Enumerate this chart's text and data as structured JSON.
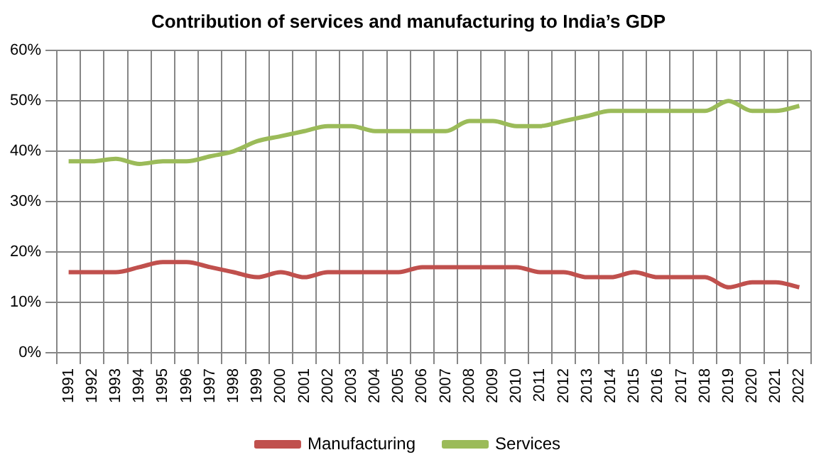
{
  "chart_data": {
    "type": "line",
    "title": "Contribution of services and manufacturing to India’s GDP",
    "categories": [
      "1991",
      "1992",
      "1993",
      "1994",
      "1995",
      "1996",
      "1997",
      "1998",
      "1999",
      "2000",
      "2001",
      "2002",
      "2003",
      "2004",
      "2005",
      "2006",
      "2007",
      "2008",
      "2009",
      "2010",
      "2011",
      "2012",
      "2013",
      "2014",
      "2015",
      "2016",
      "2017",
      "2018",
      "2019",
      "2020",
      "2021",
      "2022"
    ],
    "series": [
      {
        "name": "Manufacturing",
        "color": "#c0504d",
        "values": [
          16,
          16,
          16,
          17,
          18,
          18,
          17,
          16,
          15,
          16,
          15,
          16,
          16,
          16,
          16,
          17,
          17,
          17,
          17,
          17,
          16,
          16,
          15,
          15,
          16,
          15,
          15,
          15,
          13,
          14,
          14,
          13
        ]
      },
      {
        "name": "Services",
        "color": "#9bbb59",
        "values": [
          38,
          38,
          38.5,
          37.5,
          38,
          38,
          39,
          40,
          42,
          43,
          44,
          45,
          45,
          44,
          44,
          44,
          44,
          46,
          46,
          45,
          45,
          46,
          47,
          48,
          48,
          48,
          48,
          48,
          50,
          48,
          48,
          49
        ]
      }
    ],
    "ylim": [
      0,
      60
    ],
    "yticks": [
      {
        "value": 0,
        "label": "0%"
      },
      {
        "value": 10,
        "label": "10%"
      },
      {
        "value": 20,
        "label": "20%"
      },
      {
        "value": 30,
        "label": "30%"
      },
      {
        "value": 40,
        "label": "40%"
      },
      {
        "value": 50,
        "label": "50%"
      },
      {
        "value": 60,
        "label": "60%"
      }
    ],
    "grid": true,
    "legend": "bottom",
    "marker": "none",
    "line_style": "solid"
  }
}
